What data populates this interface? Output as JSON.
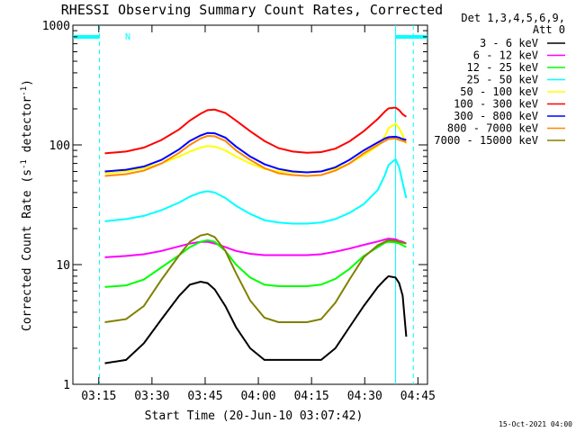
{
  "chart_data": {
    "type": "line",
    "title": "RHESSI Observing Summary Count Rates, Corrected",
    "xlabel": "Start Time (20-Jun-10 03:07:42)",
    "ylabel_main": "Corrected Count Rate (s",
    "ylabel_sup1": "-1",
    "ylabel_mid": " detector",
    "ylabel_sup2": "-1",
    "ylabel_end": ")",
    "y_scale": "log",
    "ylim": [
      1,
      1000
    ],
    "xlim_minutes": [
      0,
      100
    ],
    "x_tick_labels": [
      "03:15",
      "03:30",
      "03:45",
      "04:00",
      "04:15",
      "04:30",
      "04:45"
    ],
    "x_tick_minutes": [
      7.3,
      22.3,
      37.3,
      52.3,
      67.3,
      82.3,
      97.3
    ],
    "y_tick_labels": [
      "1",
      "10",
      "100",
      "1000"
    ],
    "y_tick_values": [
      1,
      10,
      100,
      1000
    ],
    "legend_header": [
      "Det 1,3,4,5,6,9,",
      "Att 0"
    ],
    "legend_position": "right",
    "footer_date": "15-Oct-2021 04:00",
    "annotation": "N",
    "night_bars": [
      [
        0,
        7.5
      ],
      [
        91,
        100
      ]
    ],
    "dashed_marks_minutes": [
      7.5,
      96
    ],
    "solid_marks_minutes": [
      91
    ],
    "x_minutes": [
      9,
      15,
      20,
      25,
      30,
      33,
      36,
      38,
      40,
      43,
      46,
      50,
      54,
      58,
      62,
      66,
      70,
      74,
      78,
      82,
      86,
      88,
      89,
      91,
      92,
      93,
      94
    ],
    "series": [
      {
        "name": "3 - 6 keV",
        "color": "#000000",
        "values": [
          1.5,
          1.6,
          2.2,
          3.5,
          5.5,
          6.8,
          7.2,
          7.0,
          6.2,
          4.5,
          3.0,
          2.0,
          1.6,
          1.6,
          1.6,
          1.6,
          1.6,
          2.0,
          3.0,
          4.5,
          6.5,
          7.5,
          8.0,
          7.8,
          7.0,
          5.5,
          2.5
        ]
      },
      {
        "name": "6 - 12 keV",
        "color": "#ff00ff",
        "values": [
          11.5,
          11.8,
          12.2,
          13.0,
          14.2,
          15.0,
          15.5,
          15.5,
          15.0,
          14.0,
          13.0,
          12.3,
          12.0,
          12.0,
          12.0,
          12.0,
          12.2,
          12.8,
          13.6,
          14.6,
          15.6,
          16.2,
          16.5,
          16.3,
          15.8,
          15.5,
          15.0
        ]
      },
      {
        "name": "12 - 25 keV",
        "color": "#00ff00",
        "values": [
          6.5,
          6.7,
          7.5,
          9.5,
          12.0,
          14.0,
          15.5,
          16.0,
          15.5,
          13.0,
          10.0,
          7.8,
          6.8,
          6.6,
          6.6,
          6.6,
          6.8,
          7.6,
          9.2,
          11.8,
          14.0,
          15.2,
          15.5,
          15.3,
          15.0,
          14.5,
          14.0
        ]
      },
      {
        "name": "25 - 50 keV",
        "color": "#00ffff",
        "values": [
          23,
          24,
          25.5,
          28.5,
          33,
          37,
          40,
          41,
          40,
          36,
          31,
          26.5,
          23.5,
          22.5,
          22,
          22,
          22.5,
          24,
          27,
          32,
          42,
          56,
          68,
          76,
          65,
          48,
          36
        ]
      },
      {
        "name": "50 - 100 keV",
        "color": "#ffff00",
        "values": [
          58,
          60,
          64,
          70,
          80,
          88,
          95,
          98,
          97,
          90,
          80,
          70,
          63,
          60,
          59,
          59,
          60,
          63,
          70,
          82,
          98,
          118,
          138,
          150,
          138,
          120,
          102
        ]
      },
      {
        "name": "100 - 300 keV",
        "color": "#ff0000",
        "values": [
          85,
          88,
          95,
          110,
          135,
          160,
          182,
          195,
          197,
          185,
          160,
          130,
          108,
          94,
          88,
          86,
          87,
          93,
          107,
          130,
          165,
          190,
          202,
          205,
          195,
          180,
          172
        ]
      },
      {
        "name": "300 - 800 keV",
        "color": "#0000ff",
        "values": [
          60,
          62,
          66,
          75,
          92,
          108,
          120,
          126,
          125,
          115,
          97,
          80,
          69,
          63,
          60,
          59,
          60,
          65,
          75,
          90,
          105,
          113,
          116,
          117,
          115,
          112,
          110
        ]
      },
      {
        "name": "800 - 7000 keV",
        "color": "#ff8800",
        "values": [
          55,
          57,
          61,
          70,
          86,
          100,
          113,
          119,
          118,
          108,
          90,
          75,
          64,
          58,
          56,
          55,
          56,
          61,
          70,
          85,
          100,
          108,
          112,
          113,
          110,
          108,
          105
        ]
      },
      {
        "name": "7000 - 15000 keV",
        "color": "#808000",
        "values": [
          3.3,
          3.5,
          4.5,
          7.5,
          12.0,
          15.5,
          17.5,
          18.0,
          17.0,
          13.0,
          8.5,
          5.0,
          3.6,
          3.3,
          3.3,
          3.3,
          3.5,
          4.8,
          7.5,
          11.5,
          14.5,
          15.5,
          16.0,
          15.8,
          15.5,
          15.2,
          15.0
        ]
      }
    ]
  }
}
